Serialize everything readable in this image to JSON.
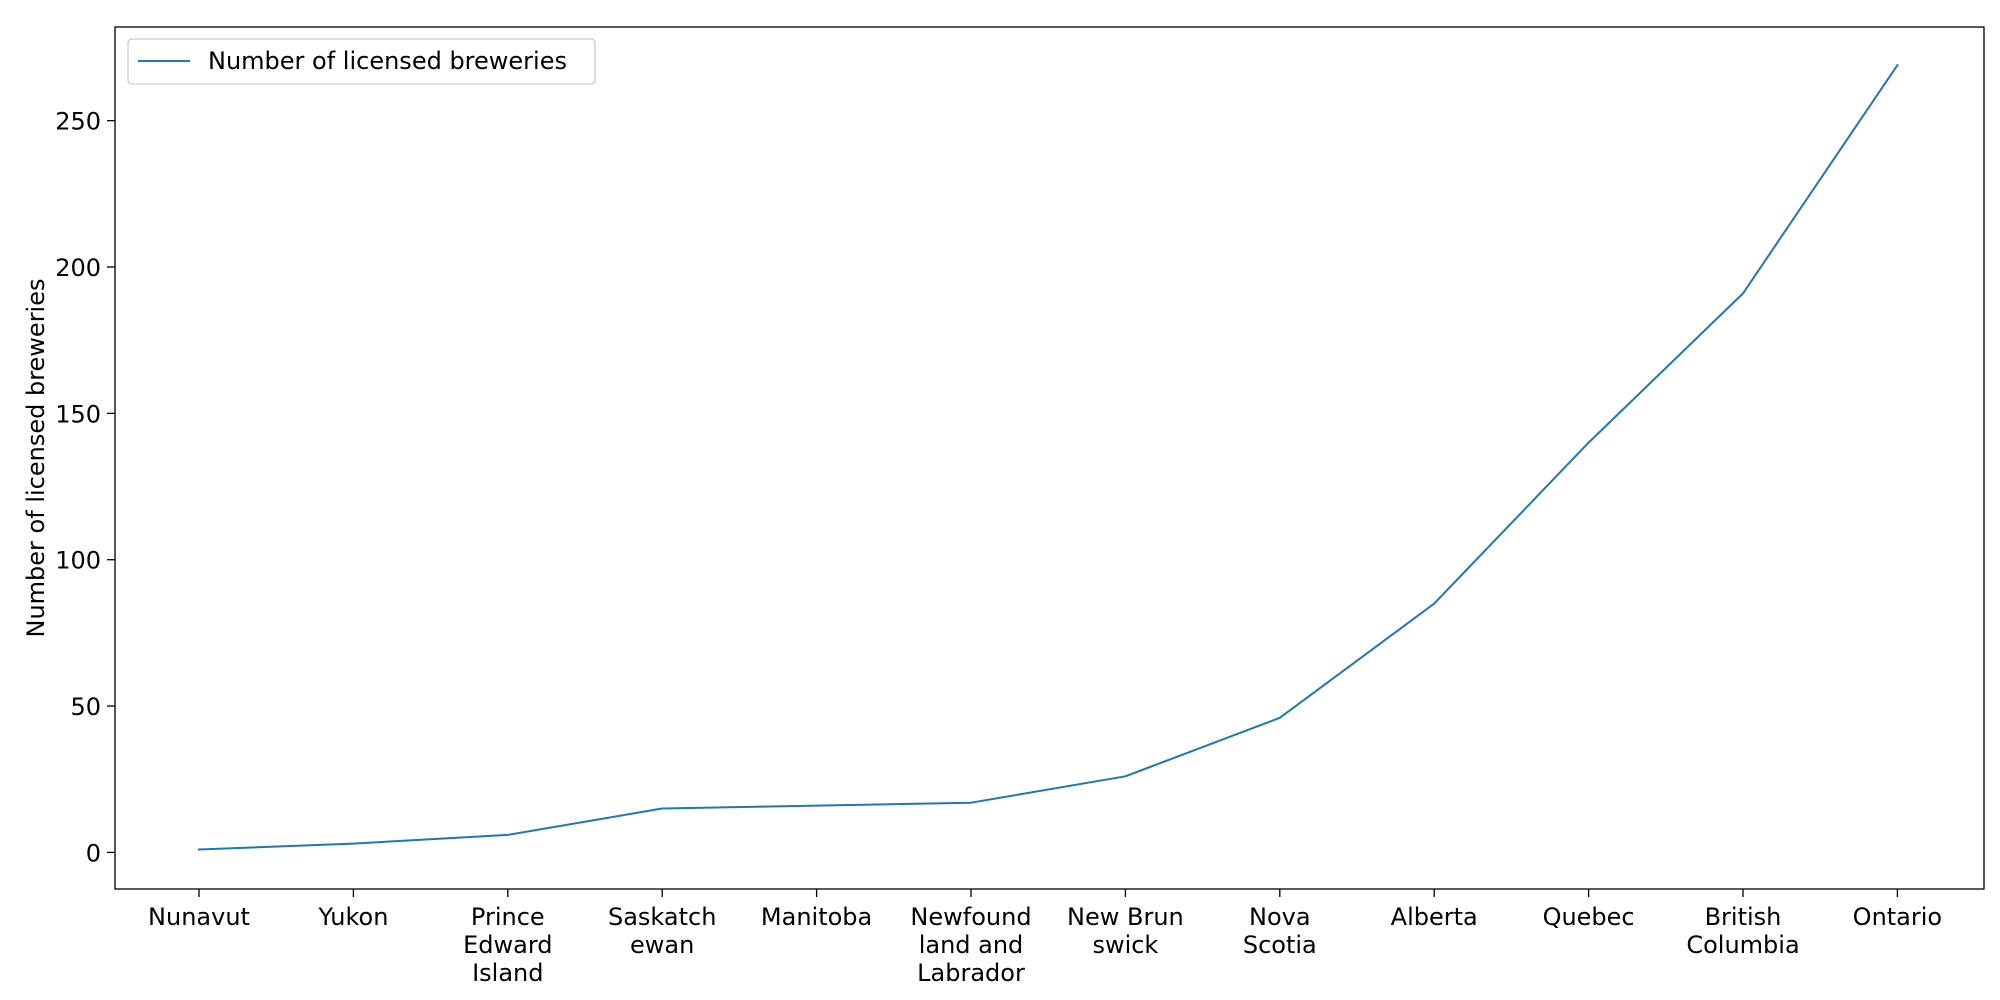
{
  "chart_data": {
    "type": "line",
    "title": "",
    "xlabel": "",
    "ylabel": "Number of licensed breweries",
    "categories": [
      "Nunavut",
      "Yukon",
      "Prince Edward Island",
      "Saskatchewan",
      "Manitoba",
      "Newfoundland and Labrador",
      "New Brunswick",
      "Nova Scotia",
      "Alberta",
      "Quebec",
      "British Columbia",
      "Ontario"
    ],
    "category_label_lines": [
      [
        "Nunavut"
      ],
      [
        "Yukon"
      ],
      [
        "Prince",
        "Edward",
        "Island"
      ],
      [
        "Saskatch",
        "ewan"
      ],
      [
        "Manitoba"
      ],
      [
        "Newfound",
        "land and",
        "Labrador"
      ],
      [
        "New Brun",
        "swick"
      ],
      [
        "Nova",
        "Scotia"
      ],
      [
        "Alberta"
      ],
      [
        "Quebec"
      ],
      [
        "British",
        "Columbia"
      ],
      [
        "Ontario"
      ]
    ],
    "series": [
      {
        "name": "Number of licensed breweries",
        "color": "#1f77b4",
        "values": [
          1,
          3,
          6,
          15,
          16,
          17,
          26,
          46,
          85,
          140,
          191,
          269
        ]
      }
    ],
    "ylim": [
      -12.5,
      282
    ],
    "yticks": [
      0,
      50,
      100,
      150,
      200,
      250
    ],
    "grid": false,
    "legend": "top-left"
  }
}
